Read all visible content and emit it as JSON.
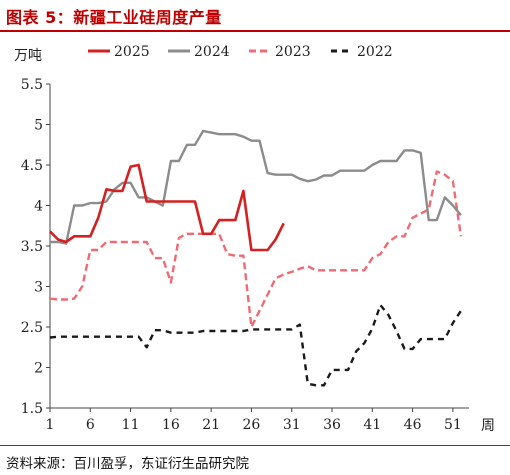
{
  "header": {
    "title": "图表 5：新疆工业硅周度产量"
  },
  "footer": {
    "source": "资料来源：百川盈孚，东证衍生品研究院"
  },
  "chart_data": {
    "type": "line",
    "title": "",
    "ylabel": "万吨",
    "xlabel": "周",
    "ylim": [
      1.5,
      5.5
    ],
    "xlim": [
      1,
      53
    ],
    "yticks": [
      1.5,
      2,
      2.5,
      3,
      3.5,
      4,
      4.5,
      5,
      5.5
    ],
    "ytick_labels": [
      "1.5",
      "2",
      "2.5",
      "3",
      "3.5",
      "4",
      "4.5",
      "5",
      "5.5"
    ],
    "xticks": [
      1,
      6,
      11,
      16,
      21,
      26,
      31,
      36,
      41,
      46,
      51
    ],
    "xtick_labels": [
      "1",
      "6",
      "11",
      "16",
      "21",
      "26",
      "31",
      "36",
      "41",
      "46",
      "51"
    ],
    "grid": false,
    "legend_position": "top",
    "series": [
      {
        "name": "2025",
        "color": "#d42020",
        "style": "solid",
        "x": [
          1,
          2,
          3,
          4,
          5,
          6,
          7,
          8,
          9,
          10,
          11,
          12,
          13,
          14,
          15,
          16,
          17,
          18,
          19,
          20,
          21,
          22,
          23,
          24,
          25,
          26,
          27,
          28,
          29,
          30
        ],
        "y": [
          3.68,
          3.58,
          3.55,
          3.62,
          3.62,
          3.62,
          3.85,
          4.2,
          4.18,
          4.18,
          4.48,
          4.5,
          4.05,
          4.05,
          4.05,
          4.05,
          4.05,
          4.05,
          4.05,
          3.65,
          3.65,
          3.82,
          3.82,
          3.82,
          4.18,
          3.45,
          3.45,
          3.45,
          3.58,
          3.78
        ]
      },
      {
        "name": "2024",
        "color": "#8c8c8c",
        "style": "solid",
        "x": [
          1,
          2,
          3,
          4,
          5,
          6,
          7,
          8,
          9,
          10,
          11,
          12,
          13,
          14,
          15,
          16,
          17,
          18,
          19,
          20,
          21,
          22,
          23,
          24,
          25,
          26,
          27,
          28,
          29,
          30,
          31,
          32,
          33,
          34,
          35,
          36,
          37,
          38,
          39,
          40,
          41,
          42,
          43,
          44,
          45,
          46,
          47,
          48,
          49,
          50,
          51,
          52
        ],
        "y": [
          3.55,
          3.55,
          3.53,
          4.0,
          4.0,
          4.03,
          4.03,
          4.05,
          4.2,
          4.28,
          4.28,
          4.1,
          4.1,
          4.05,
          4.0,
          4.55,
          4.55,
          4.75,
          4.75,
          4.92,
          4.9,
          4.88,
          4.88,
          4.88,
          4.85,
          4.8,
          4.8,
          4.4,
          4.38,
          4.38,
          4.38,
          4.33,
          4.3,
          4.32,
          4.37,
          4.37,
          4.43,
          4.43,
          4.43,
          4.43,
          4.5,
          4.55,
          4.55,
          4.55,
          4.68,
          4.68,
          4.65,
          3.82,
          3.82,
          4.1,
          4.0,
          3.88
        ]
      },
      {
        "name": "2023",
        "color": "#f06a74",
        "style": "dashed",
        "x": [
          1,
          2,
          3,
          4,
          5,
          6,
          7,
          8,
          9,
          10,
          11,
          12,
          13,
          14,
          15,
          16,
          17,
          18,
          19,
          20,
          21,
          22,
          23,
          24,
          25,
          26,
          27,
          28,
          29,
          30,
          31,
          32,
          33,
          34,
          35,
          36,
          37,
          38,
          39,
          40,
          41,
          42,
          43,
          44,
          45,
          46,
          47,
          48,
          49,
          50,
          51,
          52
        ],
        "y": [
          2.85,
          2.84,
          2.84,
          2.85,
          3.0,
          3.45,
          3.45,
          3.55,
          3.55,
          3.55,
          3.55,
          3.55,
          3.55,
          3.35,
          3.35,
          3.05,
          3.6,
          3.65,
          3.65,
          3.65,
          3.65,
          3.65,
          3.4,
          3.38,
          3.38,
          2.5,
          2.7,
          2.9,
          3.1,
          3.15,
          3.18,
          3.22,
          3.25,
          3.2,
          3.2,
          3.2,
          3.2,
          3.2,
          3.2,
          3.2,
          3.35,
          3.4,
          3.55,
          3.62,
          3.62,
          3.85,
          3.9,
          3.95,
          4.42,
          4.38,
          4.3,
          3.62
        ]
      },
      {
        "name": "2022",
        "color": "#1a1a1a",
        "style": "dashed",
        "x": [
          1,
          2,
          3,
          4,
          5,
          6,
          7,
          8,
          9,
          10,
          11,
          12,
          13,
          14,
          15,
          16,
          17,
          18,
          19,
          20,
          21,
          22,
          23,
          24,
          25,
          26,
          27,
          28,
          29,
          30,
          31,
          32,
          33,
          34,
          35,
          36,
          37,
          38,
          39,
          40,
          41,
          42,
          43,
          44,
          45,
          46,
          47,
          48,
          49,
          50,
          51,
          52
        ],
        "y": [
          2.37,
          2.38,
          2.38,
          2.38,
          2.38,
          2.38,
          2.38,
          2.38,
          2.38,
          2.38,
          2.38,
          2.38,
          2.25,
          2.46,
          2.46,
          2.43,
          2.43,
          2.43,
          2.43,
          2.45,
          2.45,
          2.45,
          2.45,
          2.45,
          2.45,
          2.47,
          2.47,
          2.47,
          2.47,
          2.47,
          2.47,
          2.53,
          1.8,
          1.78,
          1.78,
          1.97,
          1.97,
          1.97,
          2.2,
          2.3,
          2.48,
          2.77,
          2.65,
          2.45,
          2.23,
          2.23,
          2.35,
          2.35,
          2.35,
          2.35,
          2.55,
          2.7
        ]
      }
    ]
  }
}
